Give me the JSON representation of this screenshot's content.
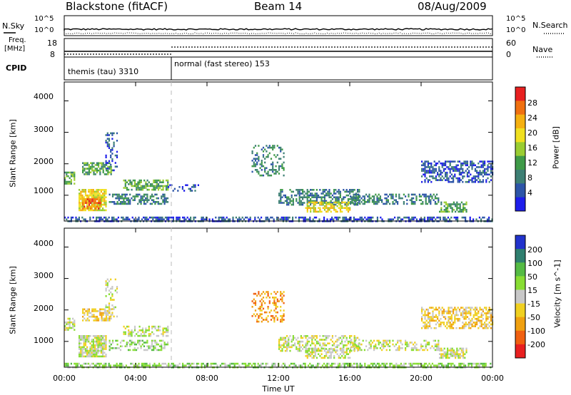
{
  "header": {
    "station": "Blackstone (fitACF)",
    "beam": "Beam 14",
    "date": "08/Aug/2009"
  },
  "strip_labels": {
    "nsky": "N.Sky",
    "freq_line1": "Freq.",
    "freq_line2": "[MHz]",
    "cpid": "CPID",
    "nsearch": "N.Search",
    "nave": "Nave"
  },
  "strip_ticks": {
    "noise_top": "10^5",
    "noise_bottom": "10^0",
    "freq_top": "18",
    "freq_bottom": "8",
    "nave_top": "60",
    "nave_bottom": "0"
  },
  "cpid_segments": [
    {
      "label": "themis (tau) 3310",
      "start_h": 0,
      "end_h": 6
    },
    {
      "label": "normal (fast stereo) 153",
      "start_h": 6,
      "end_h": 24
    }
  ],
  "chart_data": [
    {
      "type": "heatmap",
      "panel": "power",
      "ylabel": "Slant Range [km]",
      "xlabel": "",
      "ylim": [
        180,
        4600
      ],
      "xlim": [
        0,
        24
      ],
      "yticks": [
        "1000",
        "2000",
        "3000",
        "4000"
      ],
      "colorbar": {
        "label": "Power [dB]",
        "ticks": [
          "4",
          "8",
          "12",
          "16",
          "20",
          "24",
          "28"
        ],
        "colors": [
          "#1e1eeb",
          "#2d55a8",
          "#3d7f74",
          "#3f9a48",
          "#9acd32",
          "#f0e020",
          "#f5b010",
          "#f07010",
          "#e82020"
        ]
      },
      "regions": [
        {
          "t0": 0.0,
          "t1": 0.6,
          "r0": 1350,
          "r1": 1750,
          "level": 3,
          "density": 0.6
        },
        {
          "t0": 0.8,
          "t1": 2.3,
          "r0": 500,
          "r1": 1200,
          "level": 5,
          "density": 0.8
        },
        {
          "t0": 1.0,
          "t1": 2.0,
          "r0": 600,
          "r1": 900,
          "level": 7,
          "density": 0.7
        },
        {
          "t0": 1.0,
          "t1": 2.6,
          "r0": 1650,
          "r1": 2050,
          "level": 3,
          "density": 0.65
        },
        {
          "t0": 2.3,
          "t1": 3.0,
          "r0": 1800,
          "r1": 3000,
          "level": 1,
          "density": 0.3
        },
        {
          "t0": 2.5,
          "t1": 5.8,
          "r0": 700,
          "r1": 1050,
          "level": 2,
          "density": 0.55
        },
        {
          "t0": 3.3,
          "t1": 5.8,
          "r0": 1150,
          "r1": 1500,
          "level": 3,
          "density": 0.6
        },
        {
          "t0": 5.8,
          "t1": 7.5,
          "r0": 1150,
          "r1": 1350,
          "level": 1,
          "density": 0.25
        },
        {
          "t0": 10.5,
          "t1": 12.3,
          "r0": 1600,
          "r1": 2600,
          "level": 2,
          "density": 0.35
        },
        {
          "t0": 12.0,
          "t1": 16.5,
          "r0": 700,
          "r1": 1200,
          "level": 2,
          "density": 0.55
        },
        {
          "t0": 13.5,
          "t1": 16.0,
          "r0": 500,
          "r1": 800,
          "level": 5,
          "density": 0.6
        },
        {
          "t0": 16.0,
          "t1": 21.0,
          "r0": 700,
          "r1": 1050,
          "level": 2,
          "density": 0.45
        },
        {
          "t0": 21.0,
          "t1": 22.5,
          "r0": 450,
          "r1": 800,
          "level": 3,
          "density": 0.6
        },
        {
          "t0": 20.0,
          "t1": 24.0,
          "r0": 1400,
          "r1": 2100,
          "level": 1,
          "density": 0.55
        },
        {
          "t0": 0.0,
          "t1": 24.0,
          "r0": 180,
          "r1": 320,
          "level": 1,
          "density": 0.55
        }
      ]
    },
    {
      "type": "heatmap",
      "panel": "velocity",
      "ylabel": "Slant Range [km]",
      "xlabel": "Time UT",
      "ylim": [
        180,
        4600
      ],
      "xlim": [
        0,
        24
      ],
      "yticks": [
        "1000",
        "2000",
        "3000",
        "4000"
      ],
      "xticks": [
        "00:00",
        "04:00",
        "08:00",
        "12:00",
        "16:00",
        "20:00",
        "00:00"
      ],
      "colorbar": {
        "label": "Velocity [m s^-1]",
        "ticks": [
          "200",
          "100",
          "50",
          "15",
          "-15",
          "-50",
          "-100",
          "-200"
        ],
        "colors": [
          "#2233cc",
          "#2f7f6f",
          "#55bb44",
          "#88dd33",
          "#c8c8c8",
          "#f0d020",
          "#f0a010",
          "#f06010",
          "#e82020"
        ]
      },
      "regions": [
        {
          "t0": 0.0,
          "t1": 0.6,
          "r0": 1350,
          "r1": 1750,
          "level": 4,
          "density": 0.6
        },
        {
          "t0": 0.8,
          "t1": 2.3,
          "r0": 500,
          "r1": 1200,
          "level": 4,
          "density": 0.8
        },
        {
          "t0": 1.0,
          "t1": 2.6,
          "r0": 1650,
          "r1": 2050,
          "level": 5,
          "density": 0.6
        },
        {
          "t0": 2.3,
          "t1": 3.0,
          "r0": 1800,
          "r1": 3000,
          "level": 4,
          "density": 0.3
        },
        {
          "t0": 2.5,
          "t1": 5.8,
          "r0": 700,
          "r1": 1050,
          "level": 3,
          "density": 0.5
        },
        {
          "t0": 3.3,
          "t1": 5.8,
          "r0": 1150,
          "r1": 1500,
          "level": 4,
          "density": 0.5
        },
        {
          "t0": 10.5,
          "t1": 12.3,
          "r0": 1600,
          "r1": 2600,
          "level": 6,
          "density": 0.35
        },
        {
          "t0": 12.0,
          "t1": 16.5,
          "r0": 700,
          "r1": 1200,
          "level": 4,
          "density": 0.5
        },
        {
          "t0": 13.5,
          "t1": 16.0,
          "r0": 500,
          "r1": 800,
          "level": 4,
          "density": 0.6
        },
        {
          "t0": 16.0,
          "t1": 21.0,
          "r0": 700,
          "r1": 1050,
          "level": 4,
          "density": 0.45
        },
        {
          "t0": 21.0,
          "t1": 22.5,
          "r0": 450,
          "r1": 800,
          "level": 4,
          "density": 0.6
        },
        {
          "t0": 20.0,
          "t1": 24.0,
          "r0": 1400,
          "r1": 2100,
          "level": 5,
          "density": 0.55
        },
        {
          "t0": 0.0,
          "t1": 24.0,
          "r0": 180,
          "r1": 320,
          "level": 3,
          "density": 0.55
        }
      ]
    }
  ]
}
